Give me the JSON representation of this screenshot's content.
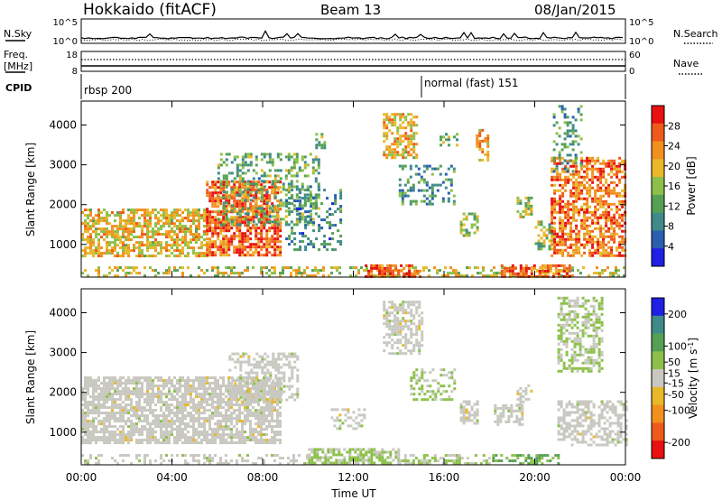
{
  "header": {
    "station": "Hokkaido (fitACF)",
    "beam": "Beam 13",
    "date": "08/Jan/2015"
  },
  "top_panels": {
    "nsky_label": "N.Sky",
    "nsky_ticks": [
      "10^5",
      "10^0"
    ],
    "nsearch_label": "N.Search",
    "nsearch_ticks": [
      "10^5",
      "10^0"
    ],
    "freq_label": "Freq.",
    "freq_unit": "[MHz]",
    "freq_ticks": [
      "18",
      "8"
    ],
    "nave_label": "Nave",
    "nave_ticks": [
      "60",
      "0"
    ],
    "cpid_label": "CPID",
    "cpid_modes": [
      {
        "label": "rbsp 200",
        "start_hour": 0
      },
      {
        "label": "normal (fast) 151",
        "start_hour": 15
      }
    ]
  },
  "chart_data": [
    {
      "type": "heatmap",
      "name": "power",
      "xlabel": "Time UT",
      "ylabel": "Slant Range [km]",
      "x_ticks": [
        "00:00",
        "04:00",
        "08:00",
        "12:00",
        "16:00",
        "20:00",
        "00:00"
      ],
      "x_hours": [
        0,
        4,
        8,
        12,
        16,
        20,
        24
      ],
      "xlim": [
        0,
        24
      ],
      "y_ticks": [
        1000,
        2000,
        3000,
        4000
      ],
      "ylim": [
        180,
        4600
      ],
      "colorbar": {
        "label": "Power [dB]",
        "ticks": [
          "4",
          "8",
          "12",
          "16",
          "20",
          "24",
          "28"
        ],
        "tick_values": [
          4,
          8,
          12,
          16,
          20,
          24,
          28
        ],
        "range": [
          0,
          32
        ],
        "colors": [
          "#1f1fe6",
          "#2a5fb0",
          "#3f8a8a",
          "#55a055",
          "#8cc04a",
          "#e8b829",
          "#f2901e",
          "#ef5a1a",
          "#e81010"
        ]
      },
      "regions": [
        {
          "t": [
            0.0,
            5.5
          ],
          "r": [
            700,
            1900
          ],
          "v": 20,
          "d": 0.65
        },
        {
          "t": [
            5.5,
            8.8
          ],
          "r": [
            700,
            2600
          ],
          "v": 26,
          "d": 0.75
        },
        {
          "t": [
            6.0,
            10.5
          ],
          "r": [
            1500,
            3300
          ],
          "v": 13,
          "d": 0.35
        },
        {
          "t": [
            9.0,
            11.5
          ],
          "r": [
            900,
            2400
          ],
          "v": 9,
          "d": 0.25
        },
        {
          "t": [
            10.2,
            10.7
          ],
          "r": [
            3400,
            3800
          ],
          "v": 14,
          "d": 0.4
        },
        {
          "t": [
            13.3,
            14.8
          ],
          "r": [
            3200,
            4300
          ],
          "v": 20,
          "d": 0.6
        },
        {
          "t": [
            15.8,
            16.6
          ],
          "r": [
            3500,
            3800
          ],
          "v": 14,
          "d": 0.45
        },
        {
          "t": [
            17.4,
            17.9
          ],
          "r": [
            3100,
            3900
          ],
          "v": 22,
          "d": 0.55
        },
        {
          "t": [
            14.0,
            16.5
          ],
          "r": [
            2000,
            3000
          ],
          "v": 10,
          "d": 0.3
        },
        {
          "t": [
            16.7,
            17.5
          ],
          "r": [
            1200,
            1800
          ],
          "v": 15,
          "d": 0.55
        },
        {
          "t": [
            19.2,
            19.9
          ],
          "r": [
            1700,
            2200
          ],
          "v": 16,
          "d": 0.55
        },
        {
          "t": [
            20.0,
            20.8
          ],
          "r": [
            900,
            1600
          ],
          "v": 16,
          "d": 0.5
        },
        {
          "t": [
            20.7,
            24.0
          ],
          "r": [
            700,
            3200
          ],
          "v": 25,
          "d": 0.6
        },
        {
          "t": [
            20.8,
            22.0
          ],
          "r": [
            2800,
            4500
          ],
          "v": 11,
          "d": 0.3
        },
        {
          "t": [
            0.0,
            24.0
          ],
          "r": [
            200,
            450
          ],
          "v": 18,
          "d": 0.35
        },
        {
          "t": [
            12.5,
            15.0
          ],
          "r": [
            200,
            500
          ],
          "v": 27,
          "d": 0.7
        },
        {
          "t": [
            18.5,
            21.5
          ],
          "r": [
            200,
            500
          ],
          "v": 26,
          "d": 0.65
        }
      ]
    },
    {
      "type": "heatmap",
      "name": "velocity",
      "xlabel": "Time UT",
      "ylabel": "Slant Range [km]",
      "x_ticks": [
        "00:00",
        "04:00",
        "08:00",
        "12:00",
        "16:00",
        "20:00",
        "00:00"
      ],
      "x_hours": [
        0,
        4,
        8,
        12,
        16,
        20,
        24
      ],
      "xlim": [
        0,
        24
      ],
      "y_ticks": [
        1000,
        2000,
        3000,
        4000
      ],
      "ylim": [
        180,
        4600
      ],
      "colorbar": {
        "label": "Velocity [m s^-1]",
        "ticks": [
          "200",
          "100",
          "50",
          "15",
          "-15",
          "-50",
          "-100",
          "-200"
        ],
        "tick_values": [
          200,
          100,
          50,
          15,
          -15,
          -50,
          -100,
          -200
        ],
        "range": [
          -250,
          250
        ],
        "colors": [
          "#e81010",
          "#ef5a1a",
          "#f2901e",
          "#e8b829",
          "#c8c8c0",
          "#8cc04a",
          "#55a055",
          "#3f8a8a",
          "#1f1fe6"
        ]
      },
      "regions": [
        {
          "t": [
            0.0,
            8.8
          ],
          "r": [
            700,
            2400
          ],
          "v": 0,
          "d": 0.75
        },
        {
          "t": [
            6.5,
            9.5
          ],
          "r": [
            1800,
            3000
          ],
          "v": 0,
          "d": 0.5
        },
        {
          "t": [
            13.3,
            15.0
          ],
          "r": [
            3000,
            4300
          ],
          "v": 0,
          "d": 0.6
        },
        {
          "t": [
            11.0,
            12.5
          ],
          "r": [
            1100,
            1600
          ],
          "v": 0,
          "d": 0.4
        },
        {
          "t": [
            16.7,
            17.5
          ],
          "r": [
            1200,
            1800
          ],
          "v": 0,
          "d": 0.55
        },
        {
          "t": [
            18.2,
            19.4
          ],
          "r": [
            1200,
            1700
          ],
          "v": 0,
          "d": 0.5
        },
        {
          "t": [
            19.2,
            19.9
          ],
          "r": [
            1700,
            2200
          ],
          "v": 0,
          "d": 0.55
        },
        {
          "t": [
            21.0,
            24.0
          ],
          "r": [
            700,
            1800
          ],
          "v": 0,
          "d": 0.55
        },
        {
          "t": [
            21.0,
            23.0
          ],
          "r": [
            2500,
            4400
          ],
          "v": 30,
          "d": 0.5
        },
        {
          "t": [
            14.5,
            16.5
          ],
          "r": [
            1800,
            2600
          ],
          "v": 35,
          "d": 0.35
        },
        {
          "t": [
            10.0,
            14.0
          ],
          "r": [
            200,
            600
          ],
          "v": 40,
          "d": 0.7
        },
        {
          "t": [
            14.0,
            18.0
          ],
          "r": [
            200,
            450
          ],
          "v": 30,
          "d": 0.5
        },
        {
          "t": [
            18.0,
            21.0
          ],
          "r": [
            200,
            450
          ],
          "v": 90,
          "d": 0.45
        },
        {
          "t": [
            0.0,
            10.0
          ],
          "r": [
            200,
            450
          ],
          "v": 5,
          "d": 0.3
        }
      ]
    }
  ]
}
